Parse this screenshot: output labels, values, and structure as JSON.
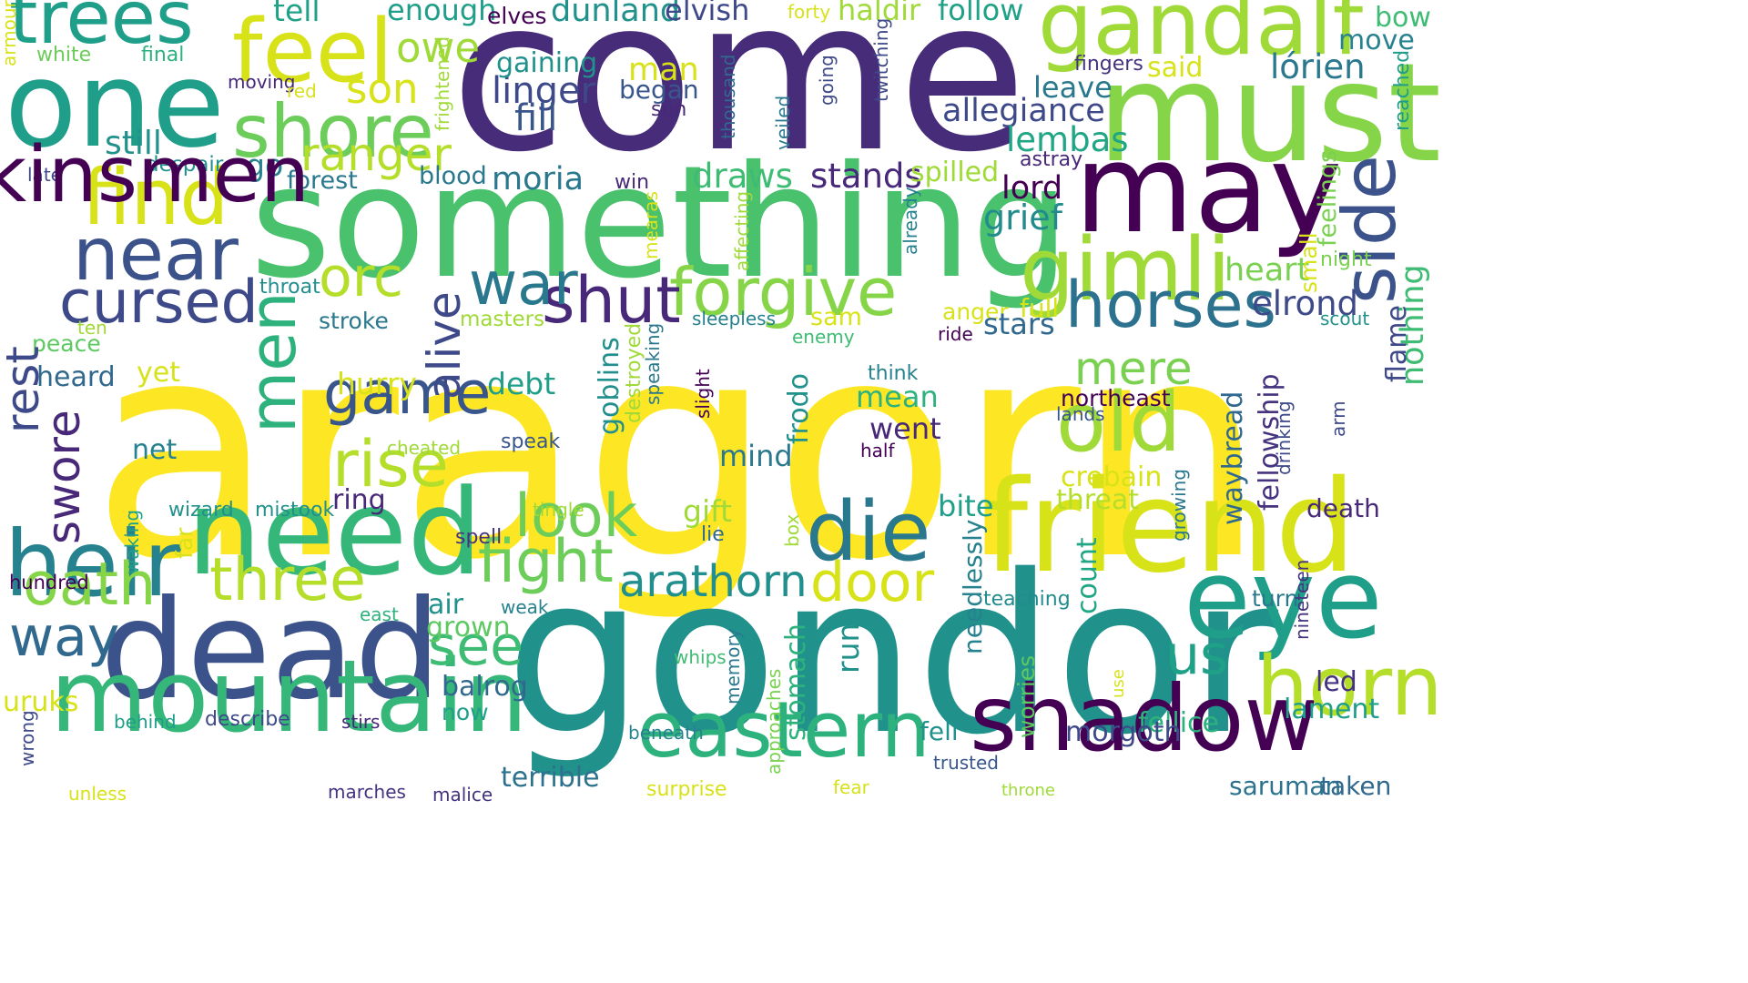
{
  "words": [
    {
      "text": "aragorn",
      "color": "#fde725",
      "vertical": false
    },
    {
      "text": "come",
      "color": "#472c7a",
      "vertical": false
    },
    {
      "text": "gondor",
      "color": "#21918c",
      "vertical": false
    },
    {
      "text": "something",
      "color": "#4ac16d",
      "vertical": false
    },
    {
      "text": "must",
      "color": "#86d549",
      "vertical": false
    },
    {
      "text": "may",
      "color": "#440154",
      "vertical": false
    },
    {
      "text": "dead",
      "color": "#3b528b",
      "vertical": false
    },
    {
      "text": "one",
      "color": "#1f9e89",
      "vertical": false
    },
    {
      "text": "friend",
      "color": "#d8e219",
      "vertical": false
    },
    {
      "text": "need",
      "color": "#35b779",
      "vertical": false
    },
    {
      "text": "mountain",
      "color": "#35b779",
      "vertical": false
    },
    {
      "text": "eye",
      "color": "#1f9e89",
      "vertical": false
    },
    {
      "text": "gandalf",
      "color": "#a0da39",
      "vertical": false
    },
    {
      "text": "shadow",
      "color": "#440154",
      "vertical": false
    },
    {
      "text": "horn",
      "color": "#b5de2b",
      "vertical": false
    },
    {
      "text": "eastern",
      "color": "#2db27d",
      "vertical": false
    },
    {
      "text": "heir",
      "color": "#26828e",
      "vertical": false
    },
    {
      "text": "die",
      "color": "#2a788e",
      "vertical": false
    },
    {
      "text": "feel",
      "color": "#d8e219",
      "vertical": false
    },
    {
      "text": "trees",
      "color": "#1f9e89",
      "vertical": false
    },
    {
      "text": "shore",
      "color": "#6ccd5a",
      "vertical": false
    },
    {
      "text": "find",
      "color": "#d8e219",
      "vertical": false
    },
    {
      "text": "near",
      "color": "#3b528b",
      "vertical": false
    },
    {
      "text": "gimli",
      "color": "#a0da39",
      "vertical": false
    },
    {
      "text": "old",
      "color": "#a0da39",
      "vertical": false
    },
    {
      "text": "cursed",
      "color": "#3e4989",
      "vertical": false
    },
    {
      "text": "horses",
      "color": "#2c728e",
      "vertical": false
    },
    {
      "text": "forgive",
      "color": "#86d549",
      "vertical": false
    },
    {
      "text": "shut",
      "color": "#482878",
      "vertical": false
    },
    {
      "text": "game",
      "color": "#39568c",
      "vertical": false
    },
    {
      "text": "three",
      "color": "#b5de2b",
      "vertical": false
    },
    {
      "text": "oath",
      "color": "#86d549",
      "vertical": false
    },
    {
      "text": "way",
      "color": "#31688e",
      "vertical": false
    },
    {
      "text": "fight",
      "color": "#6ccd5a",
      "vertical": false
    },
    {
      "text": "look",
      "color": "#6ccd5a",
      "vertical": false
    },
    {
      "text": "door",
      "color": "#d8e219",
      "vertical": false
    },
    {
      "text": "arathorn",
      "color": "#218f8d",
      "vertical": false
    },
    {
      "text": "rise",
      "color": "#b5de2b",
      "vertical": false
    },
    {
      "text": "war",
      "color": "#2a788e",
      "vertical": false
    },
    {
      "text": "orc",
      "color": "#b5de2b",
      "vertical": false
    },
    {
      "text": "ranger",
      "color": "#b5de2b",
      "vertical": false
    },
    {
      "text": "see",
      "color": "#3fbc73",
      "vertical": false
    },
    {
      "text": "us",
      "color": "#1fa187",
      "vertical": false
    },
    {
      "text": "mere",
      "color": "#7ad151",
      "vertical": false
    },
    {
      "text": "allegiance",
      "color": "#3e4989",
      "vertical": false
    },
    {
      "text": "elrond",
      "color": "#3e4989",
      "vertical": false
    },
    {
      "text": "lórien",
      "color": "#2a788e",
      "vertical": false
    },
    {
      "text": "lembas",
      "color": "#21a685",
      "vertical": false
    },
    {
      "text": "heart",
      "color": "#7ad151",
      "vertical": false
    },
    {
      "text": "grief",
      "color": "#228c8d",
      "vertical": false
    },
    {
      "text": "lord",
      "color": "#440154",
      "vertical": false
    },
    {
      "text": "stands",
      "color": "#482878",
      "vertical": false
    },
    {
      "text": "draws",
      "color": "#3fbc73",
      "vertical": false
    },
    {
      "text": "spilled",
      "color": "#a0da39",
      "vertical": false
    },
    {
      "text": "moria",
      "color": "#2a788e",
      "vertical": false
    },
    {
      "text": "linger",
      "color": "#3e4989",
      "vertical": false
    },
    {
      "text": "fill",
      "color": "#39568c",
      "vertical": false
    },
    {
      "text": "son",
      "color": "#d8e219",
      "vertical": false
    },
    {
      "text": "owe",
      "color": "#a0da39",
      "vertical": false
    },
    {
      "text": "enough",
      "color": "#1f9e89",
      "vertical": false
    },
    {
      "text": "tell",
      "color": "#1fa187",
      "vertical": false
    },
    {
      "text": "dunland",
      "color": "#21918c",
      "vertical": false
    },
    {
      "text": "elvish",
      "color": "#3e4989",
      "vertical": false
    },
    {
      "text": "haldir",
      "color": "#a0da39",
      "vertical": false
    },
    {
      "text": "follow",
      "color": "#1fa187",
      "vertical": false
    },
    {
      "text": "elves",
      "color": "#440154",
      "vertical": false
    },
    {
      "text": "forty",
      "color": "#d8e219",
      "vertical": false
    },
    {
      "text": "bow",
      "color": "#3fbc73",
      "vertical": false
    },
    {
      "text": "move",
      "color": "#26828e",
      "vertical": false
    },
    {
      "text": "said",
      "color": "#d8e219",
      "vertical": false
    },
    {
      "text": "fingers",
      "color": "#46337f",
      "vertical": false
    },
    {
      "text": "leave",
      "color": "#2a788e",
      "vertical": false
    },
    {
      "text": "gaining",
      "color": "#21918c",
      "vertical": false
    },
    {
      "text": "man",
      "color": "#d8e219",
      "vertical": false
    },
    {
      "text": "began",
      "color": "#39568c",
      "vertical": false
    },
    {
      "text": "sun",
      "color": "#482878",
      "vertical": false
    },
    {
      "text": "still",
      "color": "#21918c",
      "vertical": false
    },
    {
      "text": "go",
      "color": "#26828e",
      "vertical": false
    },
    {
      "text": "forest",
      "color": "#2a788e",
      "vertical": false
    },
    {
      "text": "blood",
      "color": "#2a788e",
      "vertical": false
    },
    {
      "text": "win",
      "color": "#482878",
      "vertical": false
    },
    {
      "text": "white",
      "color": "#6ccd5a",
      "vertical": false
    },
    {
      "text": "final",
      "color": "#2db27d",
      "vertical": false
    },
    {
      "text": "moving",
      "color": "#482878",
      "vertical": false
    },
    {
      "text": "red",
      "color": "#d8e219",
      "vertical": false
    },
    {
      "text": "despair",
      "color": "#21918c",
      "vertical": false
    },
    {
      "text": "late",
      "color": "#3e4989",
      "vertical": false
    },
    {
      "text": "astray",
      "color": "#482878",
      "vertical": false
    },
    {
      "text": "throat",
      "color": "#218f8d",
      "vertical": false
    },
    {
      "text": "stroke",
      "color": "#2a788e",
      "vertical": false
    },
    {
      "text": "masters",
      "color": "#a0da39",
      "vertical": false
    },
    {
      "text": "sam",
      "color": "#d8e219",
      "vertical": false
    },
    {
      "text": "sleepless",
      "color": "#26828e",
      "vertical": false
    },
    {
      "text": "anger",
      "color": "#d8e219",
      "vertical": false
    },
    {
      "text": "full",
      "color": "#d8e219",
      "vertical": false
    },
    {
      "text": "ride",
      "color": "#440154",
      "vertical": false
    },
    {
      "text": "enemy",
      "color": "#3fbc73",
      "vertical": false
    },
    {
      "text": "ten",
      "color": "#a0da39",
      "vertical": false
    },
    {
      "text": "peace",
      "color": "#5ec962",
      "vertical": false
    },
    {
      "text": "heard",
      "color": "#31688e",
      "vertical": false
    },
    {
      "text": "yet",
      "color": "#d8e219",
      "vertical": false
    },
    {
      "text": "hurry",
      "color": "#d8e219",
      "vertical": false
    },
    {
      "text": "debt",
      "color": "#1f9e89",
      "vertical": false
    },
    {
      "text": "think",
      "color": "#26828e",
      "vertical": false
    },
    {
      "text": "northeast",
      "color": "#440154",
      "vertical": false
    },
    {
      "text": "mean",
      "color": "#2db27d",
      "vertical": false
    },
    {
      "text": "went",
      "color": "#482878",
      "vertical": false
    },
    {
      "text": "lands",
      "color": "#39568c",
      "vertical": false
    },
    {
      "text": "half",
      "color": "#440154",
      "vertical": false
    },
    {
      "text": "net",
      "color": "#26828e",
      "vertical": false
    },
    {
      "text": "cheated",
      "color": "#a0da39",
      "vertical": false
    },
    {
      "text": "speak",
      "color": "#39568c",
      "vertical": false
    },
    {
      "text": "mind",
      "color": "#2a788e",
      "vertical": false
    },
    {
      "text": "crebain",
      "color": "#d8e219",
      "vertical": false
    },
    {
      "text": "threat",
      "color": "#b5de2b",
      "vertical": false
    },
    {
      "text": "ring",
      "color": "#482878",
      "vertical": false
    },
    {
      "text": "gift",
      "color": "#a0da39",
      "vertical": false
    },
    {
      "text": "lie",
      "color": "#31688e",
      "vertical": false
    },
    {
      "text": "bite",
      "color": "#1f9e89",
      "vertical": false
    },
    {
      "text": "death",
      "color": "#482878",
      "vertical": false
    },
    {
      "text": "wizard",
      "color": "#21918c",
      "vertical": false
    },
    {
      "text": "mistook",
      "color": "#21918c",
      "vertical": false
    },
    {
      "text": "tingle",
      "color": "#a0da39",
      "vertical": false
    },
    {
      "text": "hundred",
      "color": "#440154",
      "vertical": false
    },
    {
      "text": "spell",
      "color": "#46337f",
      "vertical": false
    },
    {
      "text": "teaching",
      "color": "#228c8d",
      "vertical": false
    },
    {
      "text": "turn",
      "color": "#2a788e",
      "vertical": false
    },
    {
      "text": "east",
      "color": "#2db27d",
      "vertical": false
    },
    {
      "text": "air",
      "color": "#21918c",
      "vertical": false
    },
    {
      "text": "weak",
      "color": "#26828e",
      "vertical": false
    },
    {
      "text": "grown",
      "color": "#5ec962",
      "vertical": false
    },
    {
      "text": "uruks",
      "color": "#d8e219",
      "vertical": false
    },
    {
      "text": "balrog",
      "color": "#31688e",
      "vertical": false
    },
    {
      "text": "now",
      "color": "#1f9e89",
      "vertical": false
    },
    {
      "text": "whips",
      "color": "#3fbc73",
      "vertical": false
    },
    {
      "text": "led",
      "color": "#46337f",
      "vertical": false
    },
    {
      "text": "lament",
      "color": "#1f9e89",
      "vertical": false
    },
    {
      "text": "fellice",
      "color": "#2db27d",
      "vertical": false
    },
    {
      "text": "morgoth",
      "color": "#3e4989",
      "vertical": false
    },
    {
      "text": "fell",
      "color": "#21918c",
      "vertical": false
    },
    {
      "text": "behind",
      "color": "#1f9e89",
      "vertical": false
    },
    {
      "text": "describe",
      "color": "#3e4989",
      "vertical": false
    },
    {
      "text": "stirs",
      "color": "#482878",
      "vertical": false
    },
    {
      "text": "beneath",
      "color": "#26828e",
      "vertical": false
    },
    {
      "text": "terrible",
      "color": "#2c728e",
      "vertical": false
    },
    {
      "text": "surprise",
      "color": "#d8e219",
      "vertical": false
    },
    {
      "text": "trusted",
      "color": "#39568c",
      "vertical": false
    },
    {
      "text": "fear",
      "color": "#d8e219",
      "vertical": false
    },
    {
      "text": "saruman",
      "color": "#2c728e",
      "vertical": false
    },
    {
      "text": "taken",
      "color": "#31688e",
      "vertical": false
    },
    {
      "text": "throne",
      "color": "#a0da39",
      "vertical": false
    },
    {
      "text": "unless",
      "color": "#d8e219",
      "vertical": false
    },
    {
      "text": "marches",
      "color": "#46337f",
      "vertical": false
    },
    {
      "text": "malice",
      "color": "#46337f",
      "vertical": false
    },
    {
      "text": "kinsmen",
      "color": "#440154",
      "vertical": false
    },
    {
      "text": "men",
      "color": "#2db27d",
      "vertical": true
    },
    {
      "text": "alive",
      "color": "#3e4989",
      "vertical": true
    },
    {
      "text": "rest",
      "color": "#3e4989",
      "vertical": true
    },
    {
      "text": "swore",
      "color": "#482878",
      "vertical": true
    },
    {
      "text": "side",
      "color": "#3b528b",
      "vertical": true
    },
    {
      "text": "nothing",
      "color": "#3fbc73",
      "vertical": true
    },
    {
      "text": "flame",
      "color": "#3e4989",
      "vertical": true
    },
    {
      "text": "reached",
      "color": "#1f9e89",
      "vertical": true
    },
    {
      "text": "feelings",
      "color": "#7ad151",
      "vertical": true
    },
    {
      "text": "small",
      "color": "#d8e219",
      "vertical": true
    },
    {
      "text": "night",
      "color": "#7ad151",
      "vertical": false
    },
    {
      "text": "scout",
      "color": "#21918c",
      "vertical": false
    },
    {
      "text": "stars",
      "color": "#31688e",
      "vertical": false
    },
    {
      "text": "fellowship",
      "color": "#46337f",
      "vertical": true
    },
    {
      "text": "waybread",
      "color": "#31688e",
      "vertical": true
    },
    {
      "text": "growing",
      "color": "#2a788e",
      "vertical": true
    },
    {
      "text": "drinking",
      "color": "#3e4989",
      "vertical": true
    },
    {
      "text": "arm",
      "color": "#3e4989",
      "vertical": true
    },
    {
      "text": "nineteen",
      "color": "#46337f",
      "vertical": true
    },
    {
      "text": "count",
      "color": "#21a685",
      "vertical": true
    },
    {
      "text": "needlessly",
      "color": "#26828e",
      "vertical": true
    },
    {
      "text": "worries",
      "color": "#5ec962",
      "vertical": true
    },
    {
      "text": "run",
      "color": "#21918c",
      "vertical": true
    },
    {
      "text": "stomach",
      "color": "#2db27d",
      "vertical": true
    },
    {
      "text": "frodo",
      "color": "#21918c",
      "vertical": true
    },
    {
      "text": "goblins",
      "color": "#218f8d",
      "vertical": true
    },
    {
      "text": "destroyed",
      "color": "#a0da39",
      "vertical": true
    },
    {
      "text": "speaking",
      "color": "#2a788e",
      "vertical": true
    },
    {
      "text": "slight",
      "color": "#440154",
      "vertical": true
    },
    {
      "text": "box",
      "color": "#a0da39",
      "vertical": true
    },
    {
      "text": "far",
      "color": "#d8e219",
      "vertical": true
    },
    {
      "text": "waking",
      "color": "#1fa187",
      "vertical": true
    },
    {
      "text": "wrong",
      "color": "#3e4989",
      "vertical": true
    },
    {
      "text": "memory",
      "color": "#2a788e",
      "vertical": true
    },
    {
      "text": "approaches",
      "color": "#7ad151",
      "vertical": true
    },
    {
      "text": "use",
      "color": "#d8e219",
      "vertical": true
    },
    {
      "text": "mearas",
      "color": "#d8e219",
      "vertical": true
    },
    {
      "text": "affecting",
      "color": "#a0da39",
      "vertical": true
    },
    {
      "text": "already",
      "color": "#26828e",
      "vertical": true
    },
    {
      "text": "veiled",
      "color": "#2a788e",
      "vertical": true
    },
    {
      "text": "going",
      "color": "#3e4989",
      "vertical": true
    },
    {
      "text": "twitching",
      "color": "#3e4989",
      "vertical": true
    },
    {
      "text": "thousand",
      "color": "#31688e",
      "vertical": true
    },
    {
      "text": "frightened",
      "color": "#a0da39",
      "vertical": true
    },
    {
      "text": "armour",
      "color": "#d8e219",
      "vertical": true
    }
  ]
}
